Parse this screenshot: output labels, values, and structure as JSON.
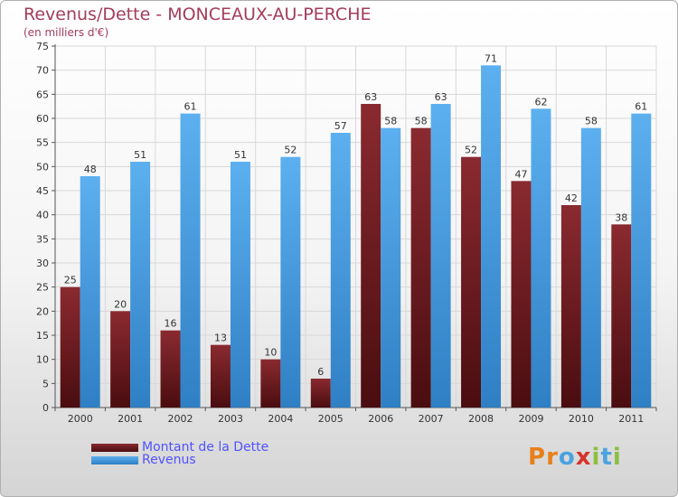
{
  "header": {
    "title": "Revenus/Dette - MONCEAUX-AU-PERCHE",
    "subtitle": "(en milliers d'€)"
  },
  "legend": {
    "debt_label": "Montant de la Dette",
    "revenue_label": "Revenus"
  },
  "logo": {
    "text": "Proxiti"
  },
  "colors": {
    "debt": "#7a1f24",
    "revenue": "#4ea6e8",
    "title": "#a33c5a",
    "legend_text": "#5252ff"
  },
  "chart_data": {
    "type": "bar",
    "title": "Revenus/Dette - MONCEAUX-AU-PERCHE",
    "subtitle": "(en milliers d'€)",
    "xlabel": "",
    "ylabel": "",
    "categories": [
      "2000",
      "2001",
      "2002",
      "2003",
      "2004",
      "2005",
      "2006",
      "2007",
      "2008",
      "2009",
      "2010",
      "2011"
    ],
    "series": [
      {
        "name": "Montant de la Dette",
        "values": [
          25,
          20,
          16,
          13,
          10,
          6,
          63,
          58,
          52,
          47,
          42,
          38
        ]
      },
      {
        "name": "Revenus",
        "values": [
          48,
          51,
          61,
          51,
          52,
          57,
          58,
          63,
          71,
          62,
          58,
          61
        ]
      }
    ],
    "ylim": [
      0,
      75
    ],
    "yticks": [
      0,
      5,
      10,
      15,
      20,
      25,
      30,
      35,
      40,
      45,
      50,
      55,
      60,
      65,
      70,
      75
    ],
    "grid": true,
    "legend_position": "bottom-left"
  }
}
